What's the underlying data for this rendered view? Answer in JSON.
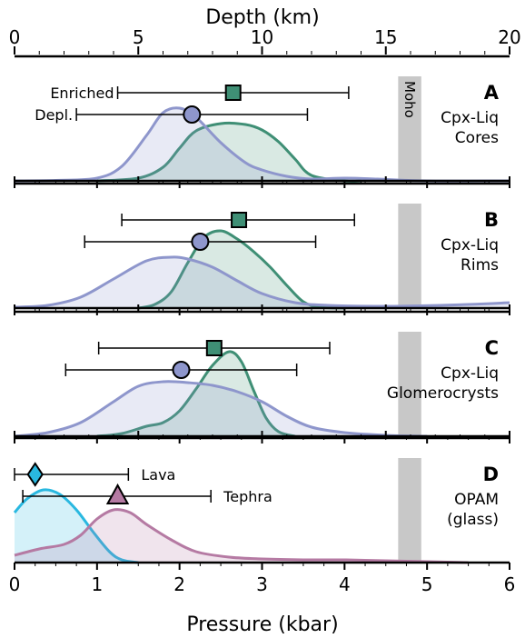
{
  "colors": {
    "enriched": "#3f8f75",
    "depleted": "#8e96cc",
    "lava": "#29b8e0",
    "tephra": "#b57aa3",
    "moho": "#c8c8c8"
  },
  "chart_data": {
    "type": "area",
    "xlabel_bottom": "Pressure (kbar)",
    "xlabel_top": "Depth (km)",
    "xlim_pressure": [
      0,
      6
    ],
    "xlim_depth": [
      0,
      20
    ],
    "pressure_ticks": [
      "0",
      "1",
      "2",
      "3",
      "4",
      "5",
      "6"
    ],
    "depth_ticks": [
      "0",
      "5",
      "10",
      "15",
      "20"
    ],
    "moho": {
      "label": "Moho",
      "pressure_range": [
        4.65,
        4.93
      ]
    },
    "panels": [
      {
        "letter": "A",
        "label_lines": [
          "Cpx-Liq",
          "Cores"
        ],
        "annotations": [
          "Enriched",
          "Depl."
        ],
        "series": [
          {
            "name": "Enriched",
            "color_key": "enriched",
            "marker": "square",
            "mean": 2.65,
            "err_low": 1.25,
            "err_high": 4.05,
            "density": [
              [
                1.0,
                0
              ],
              [
                1.5,
                0.03
              ],
              [
                1.8,
                0.15
              ],
              [
                2.0,
                0.36
              ],
              [
                2.2,
                0.55
              ],
              [
                2.5,
                0.63
              ],
              [
                2.8,
                0.62
              ],
              [
                3.0,
                0.56
              ],
              [
                3.2,
                0.43
              ],
              [
                3.4,
                0.24
              ],
              [
                3.6,
                0.06
              ],
              [
                4.0,
                0
              ],
              [
                4.2,
                0
              ]
            ]
          },
          {
            "name": "Depl.",
            "color_key": "depleted",
            "marker": "circle",
            "mean": 2.15,
            "err_low": 0.75,
            "err_high": 3.55,
            "density": [
              [
                0,
                0
              ],
              [
                0.5,
                0.005
              ],
              [
                1.0,
                0.03
              ],
              [
                1.3,
                0.16
              ],
              [
                1.6,
                0.5
              ],
              [
                1.8,
                0.75
              ],
              [
                2.0,
                0.8
              ],
              [
                2.2,
                0.7
              ],
              [
                2.5,
                0.42
              ],
              [
                2.8,
                0.2
              ],
              [
                3.0,
                0.12
              ],
              [
                3.3,
                0.05
              ],
              [
                3.6,
                0.02
              ],
              [
                4.0,
                0.03
              ],
              [
                4.4,
                0.02
              ],
              [
                5.0,
                0
              ],
              [
                6.0,
                0
              ]
            ]
          }
        ]
      },
      {
        "letter": "B",
        "label_lines": [
          "Cpx-Liq",
          "Rims"
        ],
        "annotations": [],
        "series": [
          {
            "name": "Enriched",
            "color_key": "enriched",
            "marker": "square",
            "mean": 2.72,
            "err_low": 1.3,
            "err_high": 4.12,
            "density": [
              [
                1.5,
                0
              ],
              [
                1.7,
                0.04
              ],
              [
                1.9,
                0.18
              ],
              [
                2.1,
                0.5
              ],
              [
                2.3,
                0.78
              ],
              [
                2.5,
                0.85
              ],
              [
                2.7,
                0.76
              ],
              [
                2.9,
                0.62
              ],
              [
                3.1,
                0.45
              ],
              [
                3.3,
                0.25
              ],
              [
                3.5,
                0.07
              ],
              [
                3.7,
                0.01
              ],
              [
                4.0,
                0
              ]
            ]
          },
          {
            "name": "Depl.",
            "color_key": "depleted",
            "marker": "circle",
            "mean": 2.25,
            "err_low": 0.85,
            "err_high": 3.65,
            "density": [
              [
                0,
                0.01
              ],
              [
                0.4,
                0.03
              ],
              [
                0.8,
                0.12
              ],
              [
                1.2,
                0.32
              ],
              [
                1.6,
                0.52
              ],
              [
                1.9,
                0.56
              ],
              [
                2.1,
                0.54
              ],
              [
                2.4,
                0.45
              ],
              [
                2.7,
                0.3
              ],
              [
                3.0,
                0.16
              ],
              [
                3.4,
                0.06
              ],
              [
                3.8,
                0.03
              ],
              [
                4.5,
                0.02
              ],
              [
                5.5,
                0.04
              ],
              [
                6.0,
                0.06
              ]
            ]
          }
        ]
      },
      {
        "letter": "C",
        "label_lines": [
          "Cpx-Liq",
          "Glomerocrysts"
        ],
        "annotations": [],
        "series": [
          {
            "name": "Enriched",
            "color_key": "enriched",
            "marker": "square",
            "mean": 2.42,
            "err_low": 1.02,
            "err_high": 3.82,
            "density": [
              [
                1.0,
                0
              ],
              [
                1.3,
                0.03
              ],
              [
                1.6,
                0.11
              ],
              [
                1.8,
                0.15
              ],
              [
                2.0,
                0.28
              ],
              [
                2.2,
                0.52
              ],
              [
                2.4,
                0.78
              ],
              [
                2.6,
                0.93
              ],
              [
                2.75,
                0.82
              ],
              [
                2.9,
                0.5
              ],
              [
                3.05,
                0.2
              ],
              [
                3.2,
                0.05
              ],
              [
                3.4,
                0
              ]
            ]
          },
          {
            "name": "Depl.",
            "color_key": "depleted",
            "marker": "circle",
            "mean": 2.02,
            "err_low": 0.62,
            "err_high": 3.42,
            "density": [
              [
                0,
                0
              ],
              [
                0.4,
                0.04
              ],
              [
                0.8,
                0.15
              ],
              [
                1.2,
                0.38
              ],
              [
                1.5,
                0.55
              ],
              [
                1.8,
                0.6
              ],
              [
                2.1,
                0.59
              ],
              [
                2.4,
                0.56
              ],
              [
                2.7,
                0.49
              ],
              [
                3.0,
                0.38
              ],
              [
                3.3,
                0.22
              ],
              [
                3.6,
                0.1
              ],
              [
                4.0,
                0.04
              ],
              [
                4.5,
                0.01
              ],
              [
                5.0,
                0
              ]
            ]
          }
        ]
      },
      {
        "letter": "D",
        "label_lines": [
          "OPAM",
          "(glass)"
        ],
        "annotations": [
          "Lava",
          "Tephra"
        ],
        "series": [
          {
            "name": "Lava",
            "color_key": "lava",
            "marker": "diamond",
            "mean": 0.25,
            "err_low": 0.0,
            "err_high": 1.38,
            "density": [
              [
                0,
                0.55
              ],
              [
                0.15,
                0.7
              ],
              [
                0.35,
                0.8
              ],
              [
                0.55,
                0.75
              ],
              [
                0.75,
                0.58
              ],
              [
                0.95,
                0.34
              ],
              [
                1.15,
                0.12
              ],
              [
                1.3,
                0.03
              ],
              [
                1.5,
                0
              ]
            ]
          },
          {
            "name": "Tephra",
            "color_key": "tephra",
            "marker": "triangle",
            "mean": 1.25,
            "err_low": 0.1,
            "err_high": 2.38,
            "density": [
              [
                0,
                0.08
              ],
              [
                0.3,
                0.15
              ],
              [
                0.6,
                0.2
              ],
              [
                0.8,
                0.3
              ],
              [
                1.0,
                0.48
              ],
              [
                1.2,
                0.58
              ],
              [
                1.4,
                0.55
              ],
              [
                1.6,
                0.42
              ],
              [
                1.9,
                0.25
              ],
              [
                2.2,
                0.12
              ],
              [
                2.6,
                0.06
              ],
              [
                3.0,
                0.04
              ],
              [
                3.5,
                0.03
              ],
              [
                4.0,
                0.03
              ],
              [
                4.5,
                0.02
              ],
              [
                5.0,
                0.01
              ],
              [
                5.5,
                0
              ]
            ]
          }
        ]
      }
    ]
  }
}
